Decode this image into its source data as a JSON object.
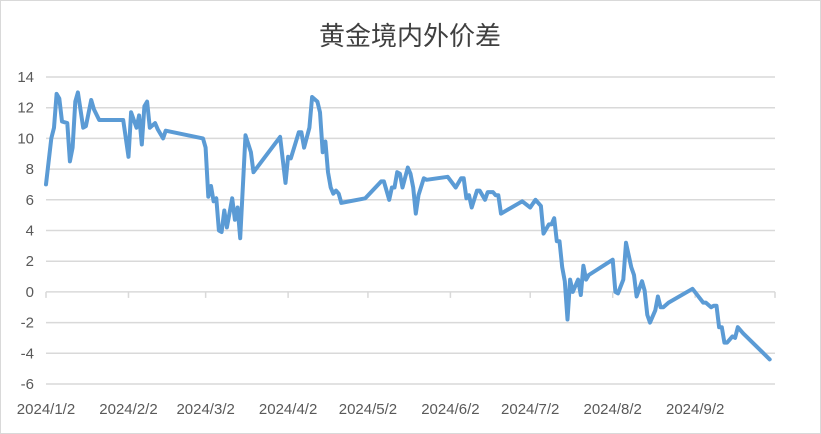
{
  "chart_data": {
    "type": "line",
    "title": "黄金境内外价差",
    "xlabel": "",
    "ylabel": "",
    "ylim": [
      -6,
      14
    ],
    "yticks": [
      "14",
      "12",
      "10",
      "8",
      "6",
      "4",
      "2",
      "0",
      "-2",
      "-4",
      "-6"
    ],
    "xlim": [
      "2024-01-02",
      "2024-10-02"
    ],
    "xticks": [
      {
        "date": "2024-01-02",
        "label": "2024/1/2"
      },
      {
        "date": "2024-02-02",
        "label": "2024/2/2"
      },
      {
        "date": "2024-03-02",
        "label": "2024/3/2"
      },
      {
        "date": "2024-04-02",
        "label": "2024/4/2"
      },
      {
        "date": "2024-05-02",
        "label": "2024/5/2"
      },
      {
        "date": "2024-06-02",
        "label": "2024/6/2"
      },
      {
        "date": "2024-07-02",
        "label": "2024/7/2"
      },
      {
        "date": "2024-08-02",
        "label": "2024/8/2"
      },
      {
        "date": "2024-09-02",
        "label": "2024/9/2"
      }
    ],
    "grid": true,
    "legend": "none",
    "line_color": "#5B9BD5",
    "grid_color": "#D9D9D9",
    "points": [
      [
        "2024-01-02",
        7.0
      ],
      [
        "2024-01-04",
        10.0
      ],
      [
        "2024-01-05",
        10.7
      ],
      [
        "2024-01-06",
        12.9
      ],
      [
        "2024-01-07",
        12.6
      ],
      [
        "2024-01-08",
        11.1
      ],
      [
        "2024-01-10",
        11.0
      ],
      [
        "2024-01-11",
        8.5
      ],
      [
        "2024-01-12",
        9.4
      ],
      [
        "2024-01-13",
        12.4
      ],
      [
        "2024-01-14",
        13.0
      ],
      [
        "2024-01-16",
        10.7
      ],
      [
        "2024-01-17",
        10.8
      ],
      [
        "2024-01-19",
        12.5
      ],
      [
        "2024-01-20",
        11.9
      ],
      [
        "2024-01-22",
        11.2
      ],
      [
        "2024-01-31",
        11.2
      ],
      [
        "2024-02-02",
        8.8
      ],
      [
        "2024-02-03",
        11.7
      ],
      [
        "2024-02-05",
        10.7
      ],
      [
        "2024-02-06",
        11.5
      ],
      [
        "2024-02-07",
        9.6
      ],
      [
        "2024-02-08",
        12.1
      ],
      [
        "2024-02-09",
        12.4
      ],
      [
        "2024-02-10",
        10.7
      ],
      [
        "2024-02-12",
        11.0
      ],
      [
        "2024-02-13",
        10.6
      ],
      [
        "2024-02-15",
        10.0
      ],
      [
        "2024-02-16",
        10.5
      ],
      [
        "2024-03-01",
        10.0
      ],
      [
        "2024-03-02",
        9.4
      ],
      [
        "2024-03-03",
        6.2
      ],
      [
        "2024-03-04",
        6.9
      ],
      [
        "2024-03-05",
        5.9
      ],
      [
        "2024-03-06",
        6.1
      ],
      [
        "2024-03-07",
        4.0
      ],
      [
        "2024-03-08",
        3.9
      ],
      [
        "2024-03-09",
        5.3
      ],
      [
        "2024-03-10",
        4.2
      ],
      [
        "2024-03-12",
        6.1
      ],
      [
        "2024-03-13",
        4.7
      ],
      [
        "2024-03-14",
        5.5
      ],
      [
        "2024-03-15",
        3.5
      ],
      [
        "2024-03-17",
        10.2
      ],
      [
        "2024-03-19",
        9.1
      ],
      [
        "2024-03-20",
        7.8
      ],
      [
        "2024-03-30",
        10.1
      ],
      [
        "2024-04-01",
        7.1
      ],
      [
        "2024-04-02",
        8.8
      ],
      [
        "2024-04-03",
        8.7
      ],
      [
        "2024-04-06",
        10.4
      ],
      [
        "2024-04-07",
        10.4
      ],
      [
        "2024-04-08",
        9.4
      ],
      [
        "2024-04-10",
        10.7
      ],
      [
        "2024-04-11",
        12.7
      ],
      [
        "2024-04-13",
        12.4
      ],
      [
        "2024-04-14",
        11.7
      ],
      [
        "2024-04-15",
        9.1
      ],
      [
        "2024-04-16",
        9.8
      ],
      [
        "2024-04-17",
        7.8
      ],
      [
        "2024-04-18",
        6.8
      ],
      [
        "2024-04-19",
        6.4
      ],
      [
        "2024-04-20",
        6.6
      ],
      [
        "2024-04-21",
        6.4
      ],
      [
        "2024-04-22",
        5.8
      ],
      [
        "2024-05-01",
        6.1
      ],
      [
        "2024-05-07",
        7.2
      ],
      [
        "2024-05-08",
        7.2
      ],
      [
        "2024-05-10",
        6.0
      ],
      [
        "2024-05-11",
        6.8
      ],
      [
        "2024-05-12",
        6.8
      ],
      [
        "2024-05-13",
        7.8
      ],
      [
        "2024-05-14",
        7.7
      ],
      [
        "2024-05-15",
        6.8
      ],
      [
        "2024-05-17",
        8.1
      ],
      [
        "2024-05-18",
        7.7
      ],
      [
        "2024-05-19",
        6.8
      ],
      [
        "2024-05-20",
        5.1
      ],
      [
        "2024-05-21",
        6.3
      ],
      [
        "2024-05-23",
        7.4
      ],
      [
        "2024-05-24",
        7.3
      ],
      [
        "2024-06-01",
        7.5
      ],
      [
        "2024-06-04",
        6.8
      ],
      [
        "2024-06-06",
        7.4
      ],
      [
        "2024-06-07",
        7.4
      ],
      [
        "2024-06-08",
        6.1
      ],
      [
        "2024-06-09",
        6.3
      ],
      [
        "2024-06-10",
        5.5
      ],
      [
        "2024-06-12",
        6.6
      ],
      [
        "2024-06-13",
        6.6
      ],
      [
        "2024-06-15",
        6.0
      ],
      [
        "2024-06-16",
        6.5
      ],
      [
        "2024-06-18",
        6.5
      ],
      [
        "2024-06-19",
        6.3
      ],
      [
        "2024-06-20",
        6.3
      ],
      [
        "2024-06-21",
        5.1
      ],
      [
        "2024-06-29",
        5.9
      ],
      [
        "2024-07-02",
        5.5
      ],
      [
        "2024-07-04",
        6.0
      ],
      [
        "2024-07-06",
        5.6
      ],
      [
        "2024-07-07",
        3.8
      ],
      [
        "2024-07-09",
        4.4
      ],
      [
        "2024-07-10",
        4.4
      ],
      [
        "2024-07-11",
        4.8
      ],
      [
        "2024-07-12",
        3.3
      ],
      [
        "2024-07-13",
        3.3
      ],
      [
        "2024-07-14",
        1.6
      ],
      [
        "2024-07-15",
        0.7
      ],
      [
        "2024-07-16",
        -1.8
      ],
      [
        "2024-07-17",
        0.8
      ],
      [
        "2024-07-18",
        0.0
      ],
      [
        "2024-07-20",
        0.8
      ],
      [
        "2024-07-21",
        -0.2
      ],
      [
        "2024-07-22",
        1.7
      ],
      [
        "2024-07-23",
        0.8
      ],
      [
        "2024-07-24",
        1.1
      ],
      [
        "2024-08-02",
        2.1
      ],
      [
        "2024-08-03",
        0.0
      ],
      [
        "2024-08-04",
        -0.1
      ],
      [
        "2024-08-06",
        0.8
      ],
      [
        "2024-08-07",
        3.2
      ],
      [
        "2024-08-09",
        1.6
      ],
      [
        "2024-08-10",
        1.1
      ],
      [
        "2024-08-11",
        -0.3
      ],
      [
        "2024-08-13",
        0.7
      ],
      [
        "2024-08-14",
        0.1
      ],
      [
        "2024-08-15",
        -1.5
      ],
      [
        "2024-08-16",
        -2.0
      ],
      [
        "2024-08-18",
        -1.2
      ],
      [
        "2024-08-19",
        -0.3
      ],
      [
        "2024-08-20",
        -1.0
      ],
      [
        "2024-08-21",
        -1.0
      ],
      [
        "2024-08-23",
        -0.7
      ],
      [
        "2024-09-01",
        0.2
      ],
      [
        "2024-09-05",
        -0.7
      ],
      [
        "2024-09-06",
        -0.7
      ],
      [
        "2024-09-08",
        -1.0
      ],
      [
        "2024-09-09",
        -0.9
      ],
      [
        "2024-09-10",
        -0.9
      ],
      [
        "2024-09-11",
        -2.3
      ],
      [
        "2024-09-12",
        -2.3
      ],
      [
        "2024-09-13",
        -3.3
      ],
      [
        "2024-09-14",
        -3.3
      ],
      [
        "2024-09-16",
        -2.9
      ],
      [
        "2024-09-17",
        -3.0
      ],
      [
        "2024-09-18",
        -2.3
      ],
      [
        "2024-09-20",
        -2.7
      ],
      [
        "2024-09-30",
        -4.4
      ]
    ]
  }
}
